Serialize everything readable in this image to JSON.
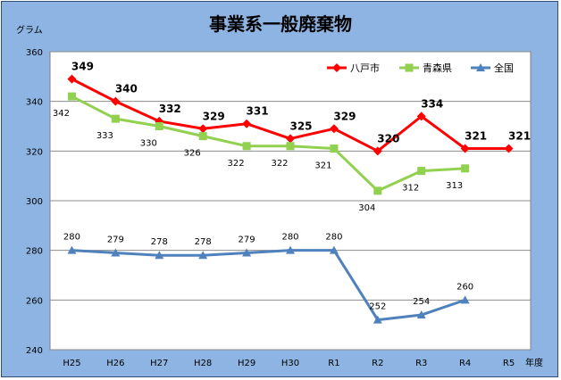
{
  "colors": {
    "background": "#8db4e2",
    "plot_area": "#ffffff",
    "hachinohe": "#ff0000",
    "aomori": "#92d050",
    "national": "#4f81bd"
  },
  "chart_data": {
    "type": "line",
    "title": "事業系一般廃棄物",
    "ylabel": "グラム",
    "xlabel": "年度",
    "categories": [
      "H25",
      "H26",
      "H27",
      "H28",
      "H29",
      "H30",
      "R1",
      "R2",
      "R3",
      "R4",
      "R5"
    ],
    "ylim": [
      240,
      360
    ],
    "yticks": [
      240,
      260,
      280,
      300,
      320,
      340,
      360
    ],
    "grid": true,
    "legend_position": "top-right",
    "series": [
      {
        "name": "八戸市",
        "color": "#ff0000",
        "marker": "diamond",
        "label_style": "bold-above",
        "values": [
          349,
          340,
          332,
          329,
          331,
          325,
          329,
          320,
          334,
          321,
          321
        ]
      },
      {
        "name": "青森県",
        "color": "#92d050",
        "marker": "square",
        "label_style": "below",
        "values": [
          342,
          333,
          330,
          326,
          322,
          322,
          321,
          304,
          312,
          313,
          null
        ]
      },
      {
        "name": "全国",
        "color": "#4f81bd",
        "marker": "triangle",
        "label_style": "above",
        "values": [
          280,
          279,
          278,
          278,
          279,
          280,
          280,
          252,
          254,
          260,
          null
        ]
      }
    ]
  }
}
